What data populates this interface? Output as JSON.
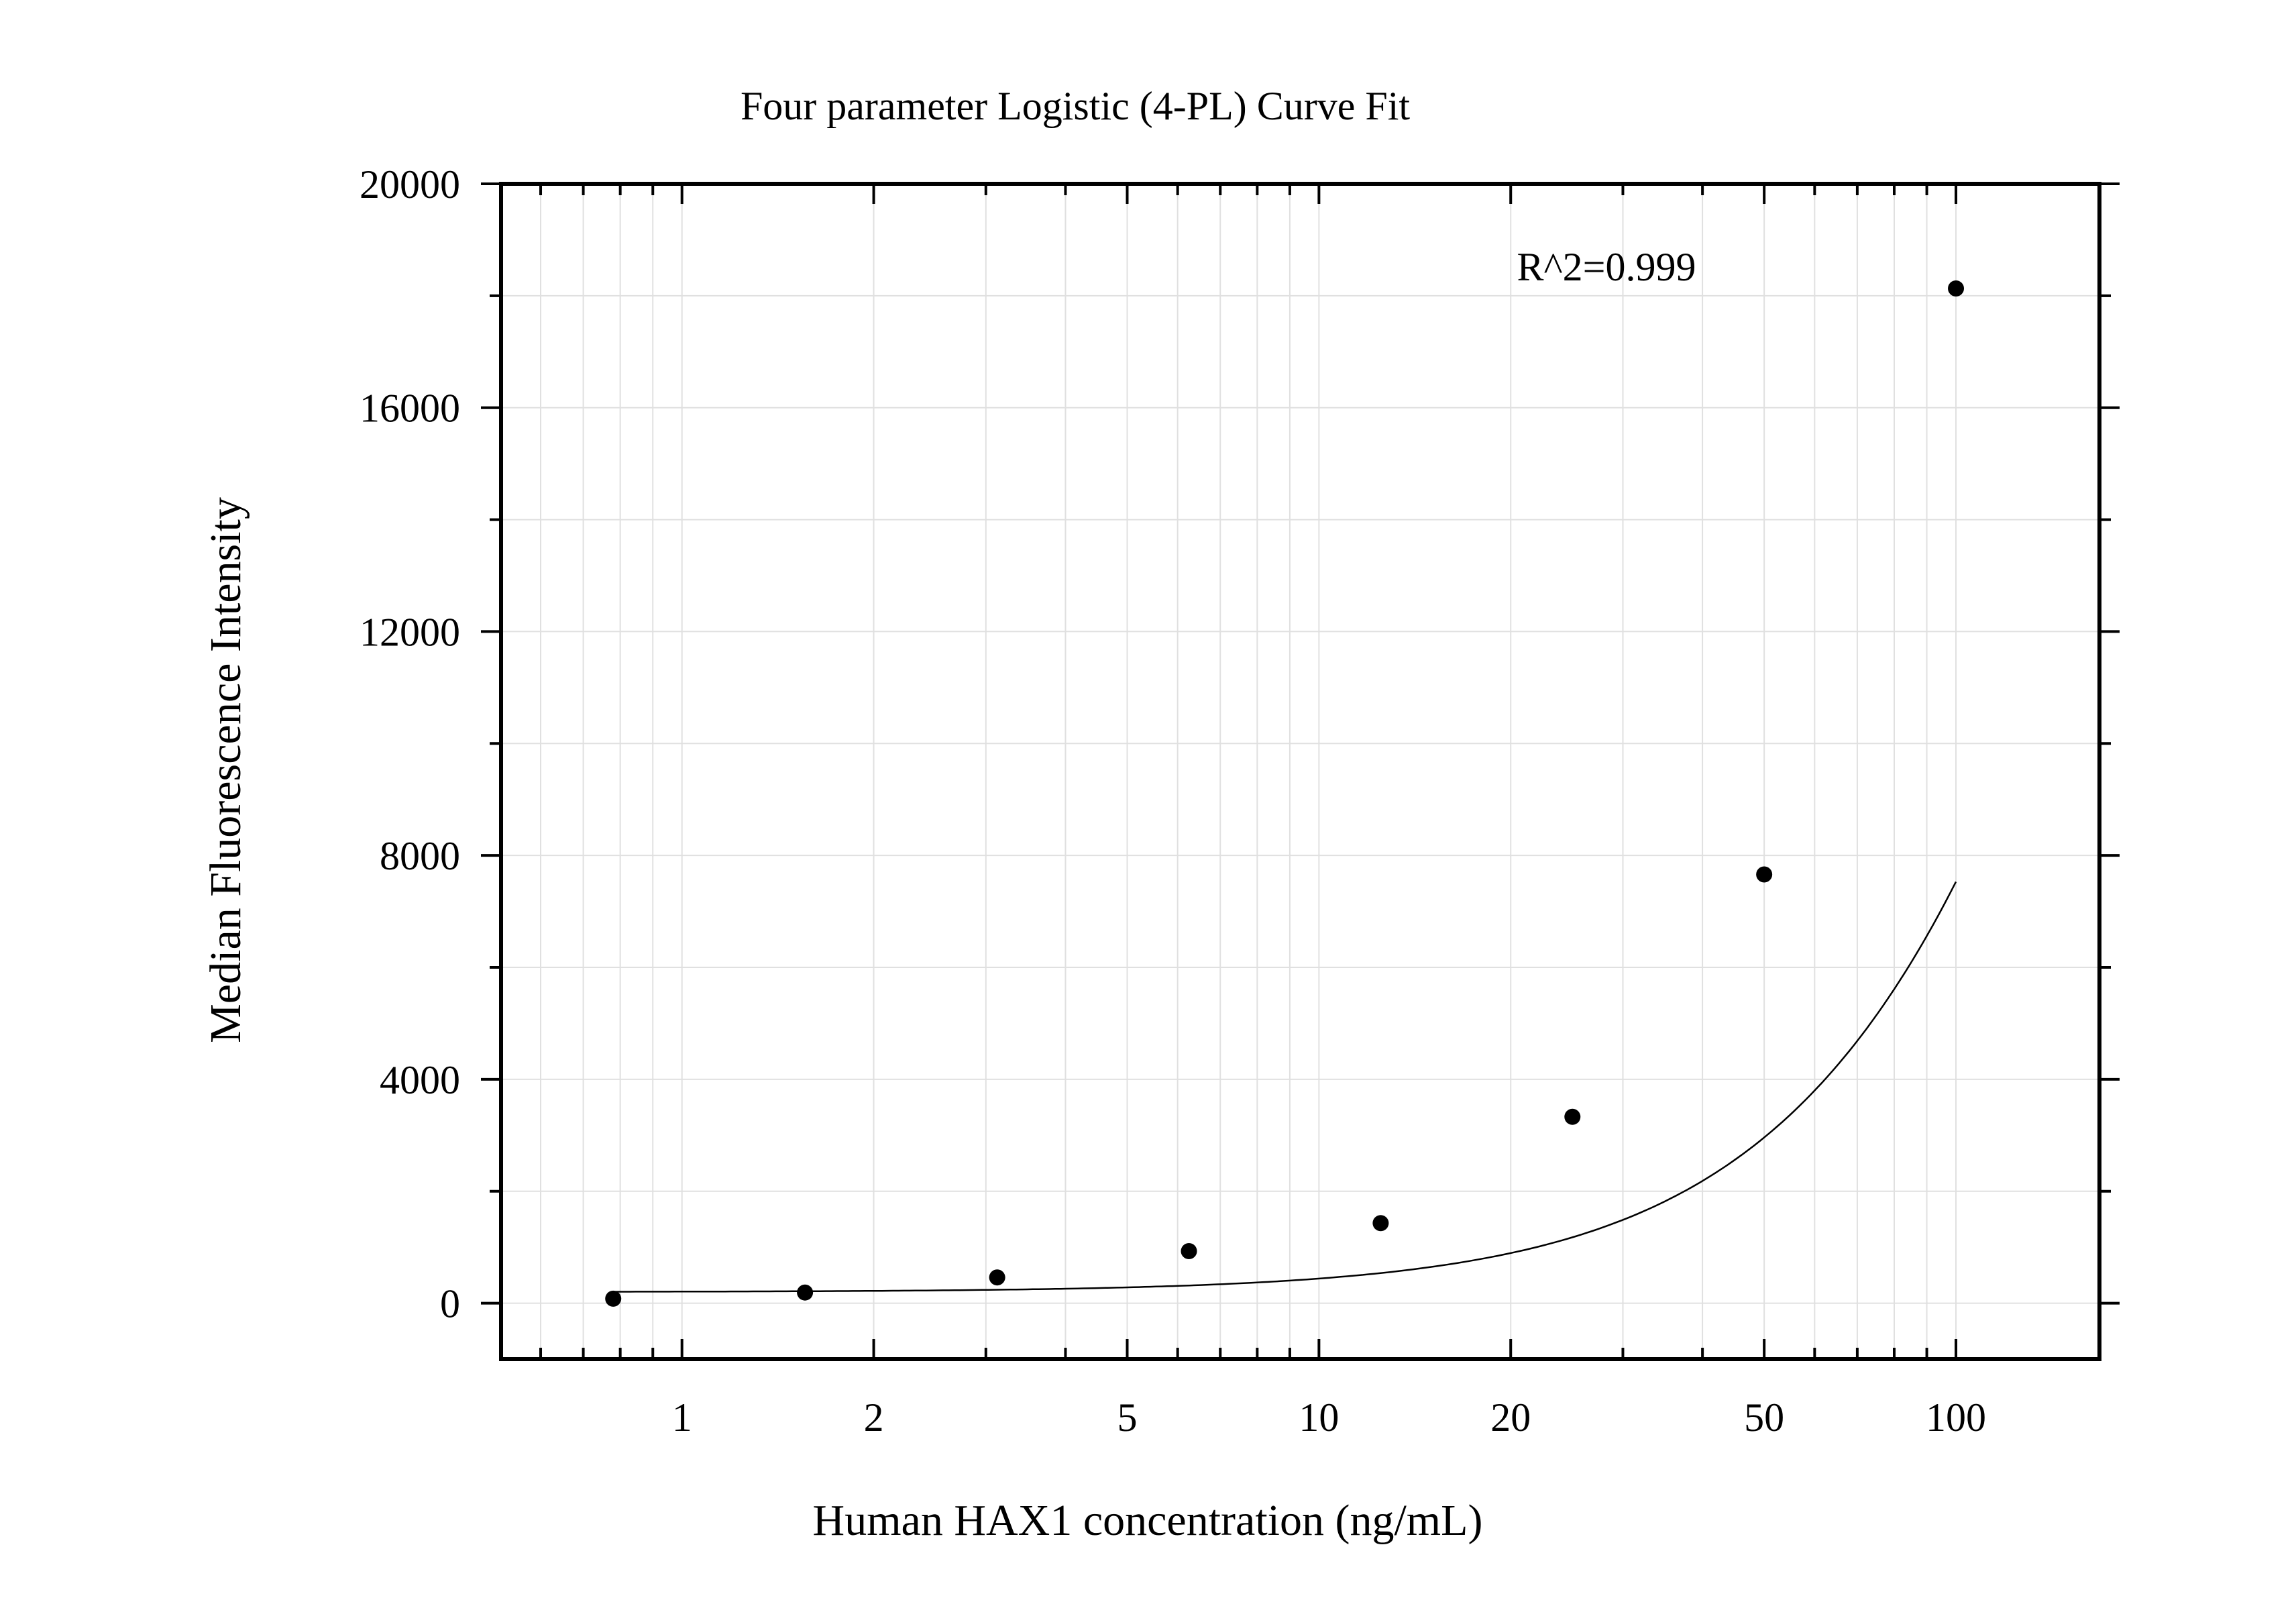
{
  "chart_data": {
    "type": "scatter",
    "title": "Four parameter Logistic (4-PL) Curve Fit",
    "xlabel": "Human HAX1 concentration (ng/mL)",
    "ylabel": "Median Fluorescence Intensity",
    "x_scale": "log",
    "xlim": [
      0.52,
      168
    ],
    "ylim": [
      -1000,
      20000
    ],
    "x_ticks": [
      1,
      2,
      5,
      10,
      20,
      50,
      100
    ],
    "x_tick_labels": [
      "1",
      "2",
      "5",
      "10",
      "20",
      "50",
      "100"
    ],
    "y_ticks": [
      0,
      4000,
      8000,
      12000,
      16000,
      20000
    ],
    "y_tick_labels": [
      "0",
      "4000",
      "8000",
      "12000",
      "16000",
      "20000"
    ],
    "grid": true,
    "annotation": "R^2=0.999",
    "series": [
      {
        "kind": "points",
        "x": [
          0.78,
          1.56,
          3.125,
          6.25,
          12.5,
          25,
          50,
          100
        ],
        "y": [
          80,
          190,
          460,
          930,
          1430,
          3330,
          7660,
          18130
        ]
      },
      {
        "kind": "fit-curve",
        "model": "4PL",
        "x_range": [
          0.78,
          100
        ]
      }
    ]
  },
  "colors": {
    "points": "#000000",
    "curve": "#000000",
    "axes": "#000000",
    "grid": "#e0e0e0",
    "background": "#ffffff"
  }
}
